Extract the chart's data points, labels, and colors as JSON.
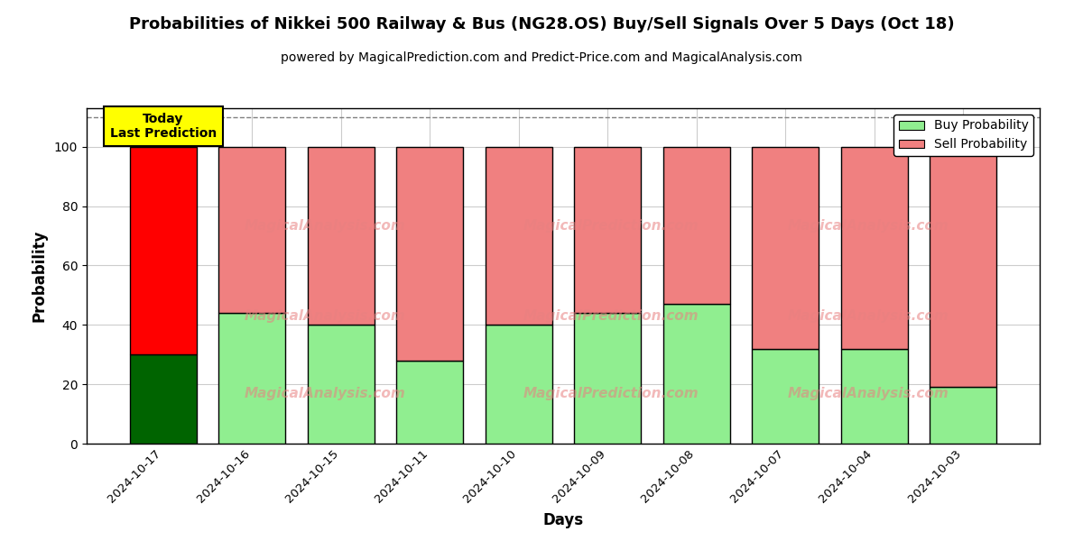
{
  "title": "Probabilities of Nikkei 500 Railway & Bus (NG28.OS) Buy/Sell Signals Over 5 Days (Oct 18)",
  "subtitle": "powered by MagicalPrediction.com and Predict-Price.com and MagicalAnalysis.com",
  "xlabel": "Days",
  "ylabel": "Probability",
  "categories": [
    "2024-10-17",
    "2024-10-16",
    "2024-10-15",
    "2024-10-11",
    "2024-10-10",
    "2024-10-09",
    "2024-10-08",
    "2024-10-07",
    "2024-10-04",
    "2024-10-03"
  ],
  "buy_values": [
    30,
    44,
    40,
    28,
    40,
    44,
    47,
    32,
    32,
    19
  ],
  "sell_values": [
    70,
    56,
    60,
    72,
    60,
    56,
    53,
    68,
    68,
    81
  ],
  "today_buy_color": "#006400",
  "today_sell_color": "#ff0000",
  "buy_color": "#90EE90",
  "sell_color": "#F08080",
  "today_annotation": "Today\nLast Prediction",
  "today_annotation_bg": "#ffff00",
  "ylim_max": 113,
  "yticks": [
    0,
    20,
    40,
    60,
    80,
    100
  ],
  "dashed_line_y": 110,
  "legend_buy_label": "Buy Probability",
  "legend_sell_label": "Sell Probability",
  "background_color": "#ffffff",
  "grid_color": "#cccccc",
  "bar_edge_color": "#000000",
  "bar_width": 0.75
}
